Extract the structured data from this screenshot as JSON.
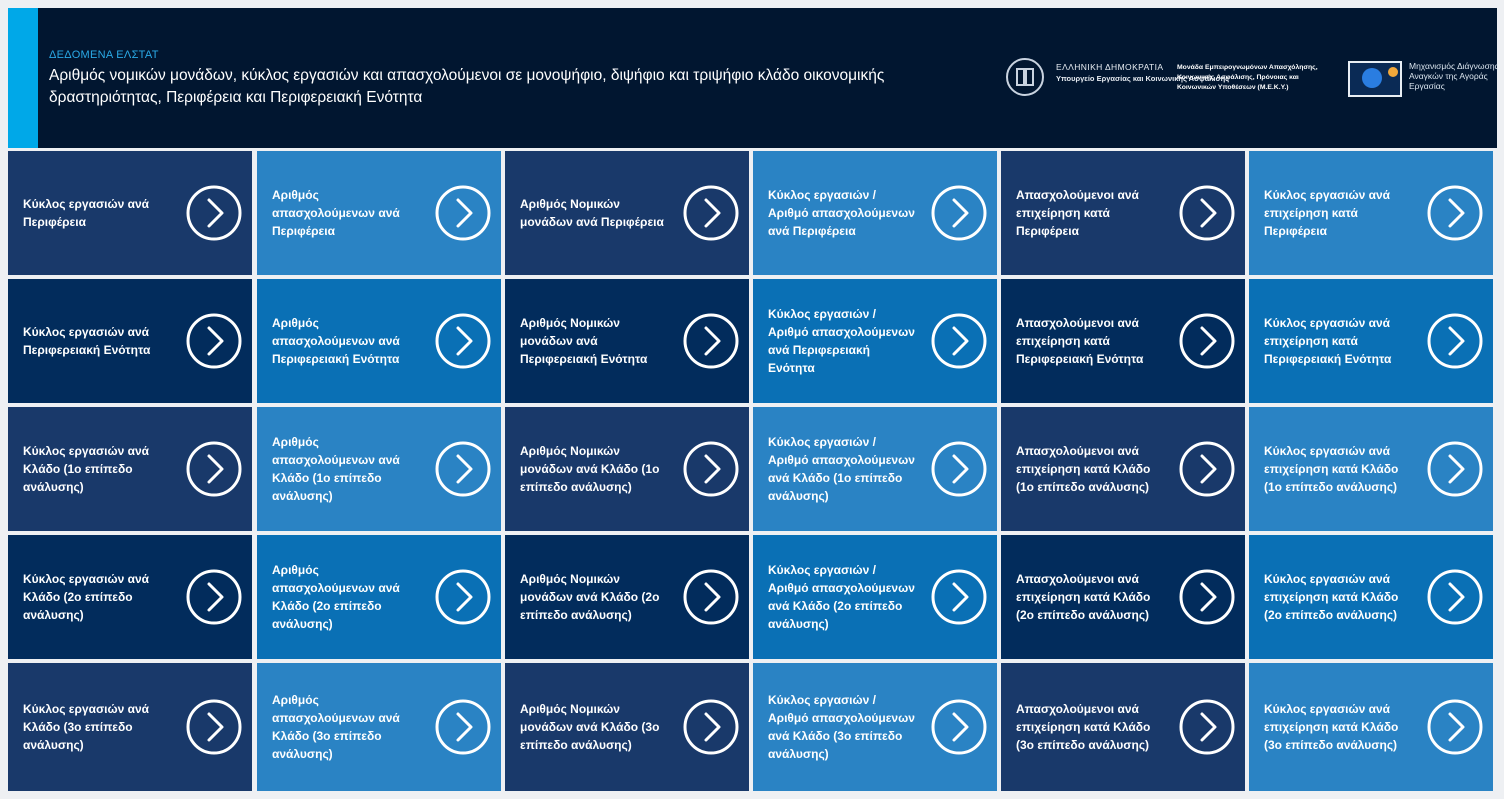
{
  "header": {
    "overline": "ΔΕΔΟΜΕΝΑ ΕΛΣΤΑΤ",
    "title": "Αριθμός νομικών μονάδων, κύκλος εργασιών και απασχολούμενοι σε μονοψήφιο, διψήφιο και τριψήφιο κλάδο οικονομικής δραστηριότητας, Περιφέρεια και Περιφερειακή Ενότητα"
  },
  "logos": {
    "ministry_line1": "ΕΛΛΗΝΙΚΗ ΔΗΜΟΚΡΑΤΙΑ",
    "ministry_line2": "Υπουργείο Εργασίας και Κοινωνικής Ασφάλισης",
    "meky": "Μονάδα Εμπειρογνωμόνων Απασχόλησης, Κοινωνικής Ασφάλισης, Πρόνοιας και Κοινωνικών Υποθέσεων (Μ.Ε.Κ.Υ.)",
    "mechanism": "Μηχανισμός Διάγνωσης Αναγκών της Αγοράς Εργασίας"
  },
  "colors": {
    "header_bg": "#011630",
    "accent": "#00a8e8",
    "tile_dark": "#19396a",
    "tile_light": "#2a83c4",
    "tile_navy": "#022c5c",
    "tile_mid": "#0a70b5"
  },
  "arrow_icon": "chevron-right-circle-icon",
  "tiles": [
    [
      "Κύκλος εργασιών ανά Περιφέρεια",
      "Αριθμός απασχολούμενων ανά Περιφέρεια",
      "Αριθμός Νομικών μονάδων ανά Περιφέρεια",
      "Κύκλος εργασιών / Αριθμό απασχολούμενων ανά Περιφέρεια",
      "Απασχολούμενοι ανά επιχείρηση κατά Περιφέρεια",
      "Κύκλος εργασιών ανά επιχείρηση κατά Περιφέρεια"
    ],
    [
      "Κύκλος εργασιών ανά Περιφερειακή Ενότητα",
      "Αριθμός απασχολούμενων ανά Περιφερειακή Ενότητα",
      "Αριθμός Νομικών μονάδων ανά Περιφερειακή Ενότητα",
      "Κύκλος εργασιών / Αριθμό απασχολούμενων ανά Περιφερειακή Ενότητα",
      "Απασχολούμενοι ανά επιχείρηση κατά Περιφερειακή Ενότητα",
      "Κύκλος εργασιών ανά επιχείρηση κατά Περιφερειακή Ενότητα"
    ],
    [
      "Κύκλος εργασιών ανά Κλάδο (1ο επίπεδο ανάλυσης)",
      "Αριθμός απασχολούμενων ανά Κλάδο (1ο επίπεδο ανάλυσης)",
      "Αριθμός Νομικών μονάδων ανά Κλάδο (1ο επίπεδο ανάλυσης)",
      "Κύκλος εργασιών / Αριθμό απασχολούμενων ανά Κλάδο (1ο επίπεδο ανάλυσης)",
      "Απασχολούμενοι ανά επιχείρηση κατά Κλάδο (1ο επίπεδο ανάλυσης)",
      "Κύκλος εργασιών ανά επιχείρηση κατά Κλάδο (1ο επίπεδο ανάλυσης)"
    ],
    [
      "Κύκλος εργασιών ανά Κλάδο (2ο επίπεδο ανάλυσης)",
      "Αριθμός απασχολούμενων ανά Κλάδο (2ο επίπεδο ανάλυσης)",
      "Αριθμός Νομικών μονάδων ανά Κλάδο (2ο επίπεδο ανάλυσης)",
      "Κύκλος εργασιών / Αριθμό απασχολούμενων ανά Κλάδο (2ο επίπεδο ανάλυσης)",
      "Απασχολούμενοι ανά επιχείρηση κατά Κλάδο (2ο επίπεδο ανάλυσης)",
      "Κύκλος εργασιών ανά επιχείρηση κατά Κλάδο (2ο επίπεδο ανάλυσης)"
    ],
    [
      "Κύκλος εργασιών ανά Κλάδο (3ο επίπεδο ανάλυσης)",
      "Αριθμός απασχολούμενων ανά Κλάδο (3ο επίπεδο ανάλυσης)",
      "Αριθμός Νομικών μονάδων ανά Κλάδο (3ο επίπεδο ανάλυσης)",
      "Κύκλος εργασιών / Αριθμό απασχολούμενων ανά Κλάδο (3ο επίπεδο ανάλυσης)",
      "Απασχολούμενοι ανά επιχείρηση κατά Κλάδο (3ο επίπεδο ανάλυσης)",
      "Κύκλος εργασιών ανά επιχείρηση κατά Κλάδο (3ο επίπεδο ανάλυσης)"
    ]
  ]
}
